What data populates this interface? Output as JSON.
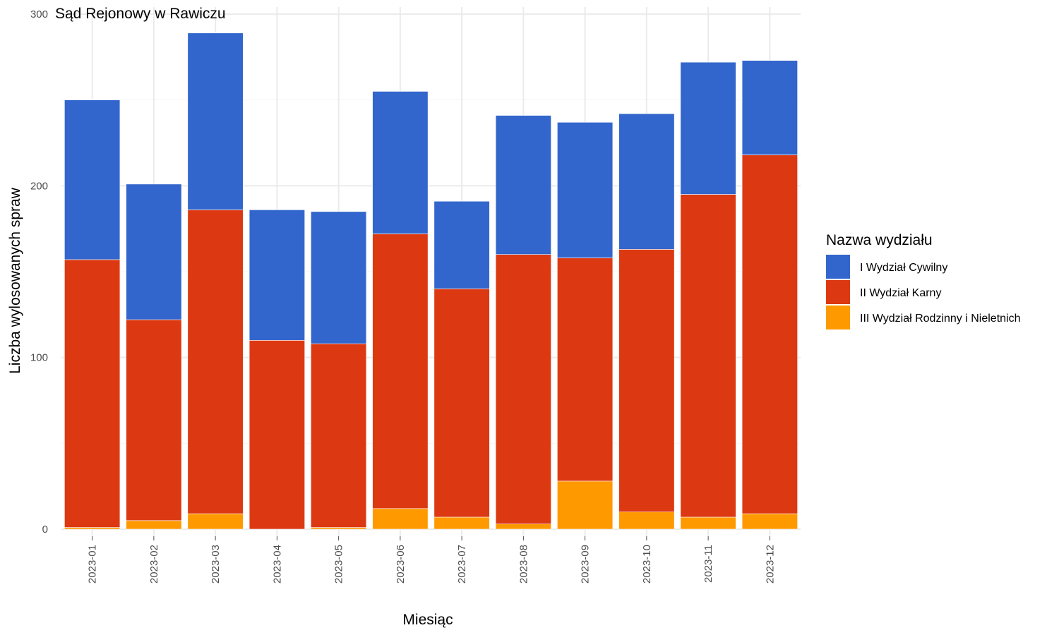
{
  "chart_data": {
    "type": "bar",
    "stacked": true,
    "title": "Sąd Rejonowy w Rawiczu",
    "xlabel": "Miesiąc",
    "ylabel": "Liczba wylosowanych spraw",
    "ylim": [
      0,
      300
    ],
    "yticks": [
      0,
      100,
      200,
      300
    ],
    "grid": true,
    "legend_position": "right",
    "legend_title": "Nazwa wydziału",
    "categories": [
      "2023-01",
      "2023-02",
      "2023-03",
      "2023-04",
      "2023-05",
      "2023-06",
      "2023-07",
      "2023-08",
      "2023-09",
      "2023-10",
      "2023-11",
      "2023-12"
    ],
    "series": [
      {
        "name": "III Wydział Rodzinny i Nieletnich",
        "color": "#FF9900",
        "values": [
          1,
          5,
          9,
          0,
          1,
          12,
          7,
          3,
          28,
          10,
          7,
          9
        ]
      },
      {
        "name": "II Wydział Karny",
        "color": "#DC3912",
        "values": [
          156,
          117,
          177,
          110,
          107,
          160,
          133,
          157,
          130,
          153,
          188,
          209
        ]
      },
      {
        "name": "I Wydział Cywilny",
        "color": "#3366CC",
        "values": [
          93,
          79,
          103,
          76,
          77,
          83,
          51,
          81,
          79,
          79,
          77,
          55
        ]
      }
    ],
    "legend_order": [
      "I Wydział Cywilny",
      "II Wydział Karny",
      "III Wydział Rodzinny i Nieletnich"
    ]
  }
}
